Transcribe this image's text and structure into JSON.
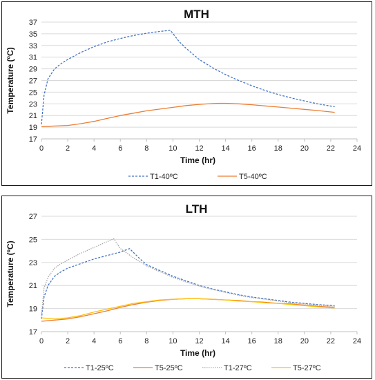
{
  "charts": [
    {
      "id": "mth",
      "chart_data": {
        "type": "line",
        "title": "MTH",
        "xlabel": "Time (hr)",
        "ylabel": "Temperature (ºC)",
        "xlim": [
          0,
          24
        ],
        "ylim": [
          17,
          37
        ],
        "xticks": [
          0,
          2,
          4,
          6,
          8,
          10,
          12,
          14,
          16,
          18,
          20,
          22,
          24
        ],
        "yticks": [
          17,
          19,
          21,
          23,
          25,
          27,
          29,
          31,
          33,
          35,
          37
        ],
        "grid": "horizontal",
        "legend": "bottom",
        "series": [
          {
            "name": "T1-40ºC",
            "color": "#4472C4",
            "dash": "dashed",
            "x": [
              0,
              0.2,
              0.5,
              1,
              1.5,
              2,
              3,
              4,
              5,
              6,
              7,
              8,
              9,
              9.8,
              10.5,
              11,
              12,
              13,
              14,
              15,
              16,
              17,
              18,
              19,
              20,
              21,
              22.3
            ],
            "y": [
              19.5,
              24.5,
              27.3,
              29.0,
              29.9,
              30.6,
              31.8,
              32.8,
              33.6,
              34.2,
              34.7,
              35.1,
              35.4,
              35.6,
              33.6,
              32.5,
              30.6,
              29.2,
              28.0,
              27.0,
              26.1,
              25.3,
              24.6,
              24.0,
              23.5,
              23.0,
              22.5
            ]
          },
          {
            "name": "T5-40ºC",
            "color": "#ED7D31",
            "dash": "solid",
            "x": [
              0,
              1,
              2,
              3,
              4,
              5,
              6,
              7,
              8,
              9,
              10,
              11,
              12,
              13,
              13.5,
              14,
              15,
              16,
              17,
              18,
              19,
              20,
              21,
              22.3
            ],
            "y": [
              19.1,
              19.2,
              19.3,
              19.6,
              20.0,
              20.5,
              21.0,
              21.4,
              21.8,
              22.1,
              22.4,
              22.7,
              22.9,
              23.05,
              23.1,
              23.1,
              23.0,
              22.85,
              22.65,
              22.45,
              22.25,
              22.05,
              21.85,
              21.55
            ]
          }
        ]
      }
    },
    {
      "id": "lth",
      "chart_data": {
        "type": "line",
        "title": "LTH",
        "xlabel": "Time (hr)",
        "ylabel": "Temperature (ºC)",
        "xlim": [
          0,
          24
        ],
        "ylim": [
          17,
          27
        ],
        "xticks": [
          0,
          2,
          4,
          6,
          8,
          10,
          12,
          14,
          16,
          18,
          20,
          22,
          24
        ],
        "yticks": [
          17,
          19,
          21,
          23,
          25,
          27
        ],
        "grid": "horizontal",
        "legend": "bottom",
        "series": [
          {
            "name": "T1-25ºC",
            "color": "#4472C4",
            "dash": "dashed",
            "x": [
              0,
              0.2,
              0.5,
              1,
              1.5,
              2,
              3,
              4,
              5,
              6,
              6.7,
              7.5,
              8,
              9,
              10,
              11,
              12,
              13,
              14,
              15,
              16,
              17,
              18,
              19,
              20,
              21,
              22.3
            ],
            "y": [
              18.1,
              20.0,
              21.0,
              21.8,
              22.2,
              22.5,
              22.9,
              23.3,
              23.6,
              23.9,
              24.2,
              23.3,
              22.8,
              22.3,
              21.8,
              21.4,
              21.0,
              20.7,
              20.45,
              20.2,
              20.0,
              19.85,
              19.7,
              19.55,
              19.45,
              19.35,
              19.25
            ]
          },
          {
            "name": "T5-25ºC",
            "color": "#ED7D31",
            "dash": "solid",
            "x": [
              0,
              1,
              2,
              3,
              4,
              5,
              6,
              7,
              8,
              9,
              10,
              11,
              12,
              13,
              14,
              15,
              16,
              17,
              18,
              19,
              20,
              21,
              22.3
            ],
            "y": [
              17.9,
              18.0,
              18.1,
              18.3,
              18.55,
              18.8,
              19.1,
              19.35,
              19.55,
              19.7,
              19.8,
              19.85,
              19.85,
              19.8,
              19.75,
              19.7,
              19.6,
              19.55,
              19.45,
              19.4,
              19.3,
              19.2,
              19.1
            ]
          },
          {
            "name": "T1-27ºC",
            "color": "#A5A5A5",
            "dash": "dotted",
            "x": [
              0,
              0.2,
              0.5,
              1,
              1.5,
              2,
              3,
              4,
              5,
              5.5,
              6,
              7,
              8,
              9,
              10,
              11,
              12,
              13,
              14,
              15,
              16,
              17,
              18,
              19,
              20,
              21,
              22.3
            ],
            "y": [
              18.4,
              20.8,
              21.7,
              22.5,
              22.9,
              23.2,
              23.8,
              24.3,
              24.8,
              25.05,
              24.2,
              23.4,
              22.7,
              22.2,
              21.7,
              21.3,
              20.95,
              20.65,
              20.4,
              20.15,
              19.95,
              19.8,
              19.65,
              19.5,
              19.4,
              19.3,
              19.2
            ]
          },
          {
            "name": "T5-27ºC",
            "color": "#FFC000",
            "dash": "solid",
            "x": [
              0,
              1,
              2,
              3,
              4,
              5,
              6,
              7,
              8,
              9,
              10,
              11,
              12,
              13,
              14,
              15,
              16,
              17,
              18,
              19,
              20,
              21,
              22.3
            ],
            "y": [
              18.2,
              18.1,
              18.2,
              18.4,
              18.7,
              18.95,
              19.2,
              19.45,
              19.6,
              19.75,
              19.8,
              19.85,
              19.85,
              19.8,
              19.75,
              19.65,
              19.6,
              19.5,
              19.45,
              19.35,
              19.25,
              19.15,
              19.05
            ]
          }
        ]
      }
    }
  ]
}
